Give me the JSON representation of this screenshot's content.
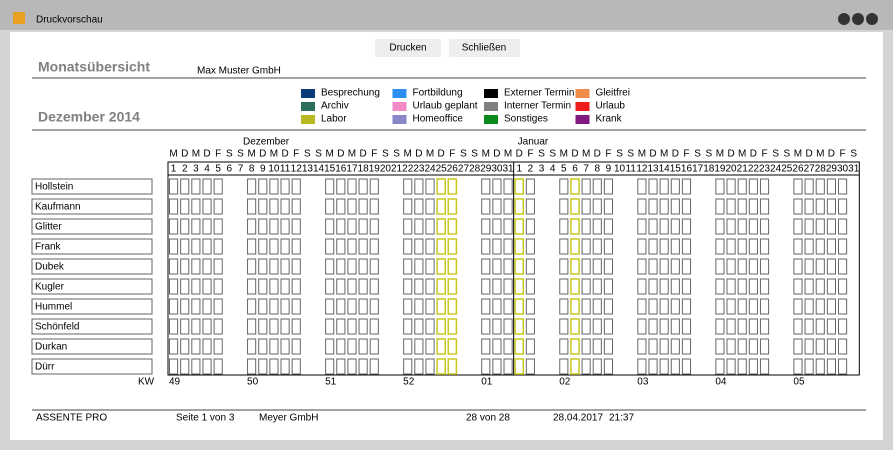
{
  "window": {
    "title": "Druckvorschau"
  },
  "buttons": [
    "Drucken",
    "Schließen"
  ],
  "header": {
    "title": "Monatsübersicht",
    "company": "Max Muster GmbH",
    "period": "Dezember 2014"
  },
  "legend": [
    {
      "label": "Besprechung",
      "color": "#0b3a7a"
    },
    {
      "label": "Archiv",
      "color": "#2e6e5e"
    },
    {
      "label": "Labor",
      "color": "#b8b820"
    },
    {
      "label": "Fortbildung",
      "color": "#2e8ef0"
    },
    {
      "label": "Urlaub geplant",
      "color": "#f28ac8"
    },
    {
      "label": "Homeoffice",
      "color": "#8a86c8"
    },
    {
      "label": "Externer Termin",
      "color": "#000000"
    },
    {
      "label": "Interner Termin",
      "color": "#808080"
    },
    {
      "label": "Sonstiges",
      "color": "#0a8a1a"
    },
    {
      "label": "Gleitfrei",
      "color": "#f28a4a"
    },
    {
      "label": "Urlaub",
      "color": "#ee1c1c"
    },
    {
      "label": "Krank",
      "color": "#801a80"
    }
  ],
  "calendar": {
    "months": [
      {
        "name": "Dezember",
        "days": [
          1,
          2,
          3,
          4,
          5,
          6,
          7,
          8,
          9,
          10,
          11,
          12,
          13,
          14,
          15,
          16,
          17,
          18,
          19,
          20,
          21,
          22,
          23,
          24,
          25,
          26,
          27,
          28,
          29,
          30,
          31
        ]
      },
      {
        "name": "Januar",
        "days": [
          1,
          2,
          3,
          4,
          5,
          6,
          7,
          8,
          9,
          10,
          11,
          12,
          13,
          14,
          15,
          16,
          17,
          18,
          19,
          20,
          21,
          22,
          23,
          24,
          25,
          26,
          27,
          28,
          29,
          30,
          31
        ]
      }
    ],
    "weekdays": [
      "M",
      "D",
      "M",
      "D",
      "F",
      "S",
      "S"
    ],
    "people": [
      "Hollstein",
      "Kaufmann",
      "Glitter",
      "Frank",
      "Dubek",
      "Kugler",
      "Hummel",
      "Schönfeld",
      "Durkan",
      "Dürr"
    ],
    "kw_label": "KW",
    "weeks": [
      "49",
      "50",
      "51",
      "52",
      "01",
      "02",
      "03",
      "04",
      "05"
    ]
  },
  "footer": {
    "product": "ASSENTE PRO",
    "page": "Seite  1 von 3",
    "company": "Meyer GmbH",
    "count": "28 von 28",
    "date": "28.04.2017",
    "time": "21:37"
  }
}
